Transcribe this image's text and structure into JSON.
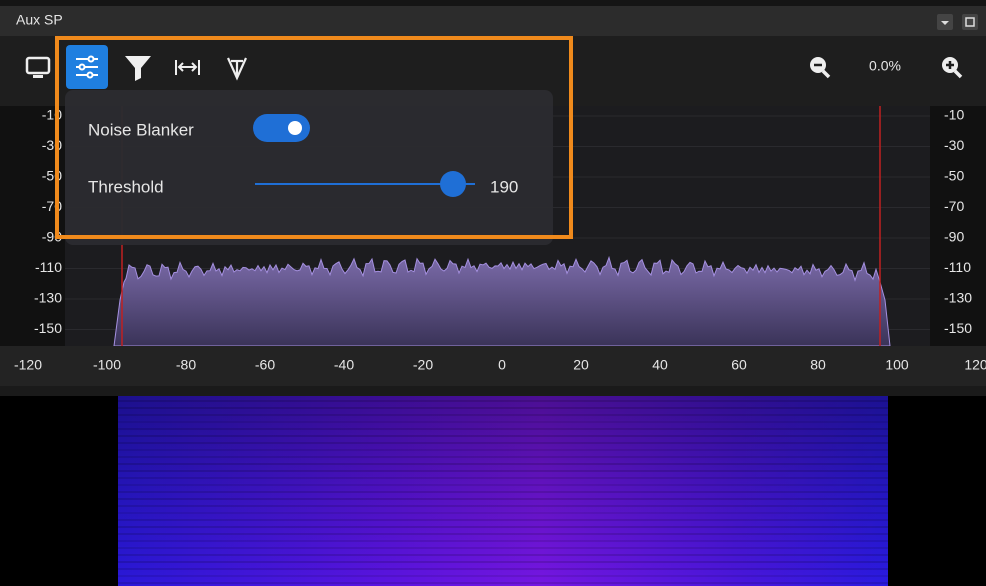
{
  "window": {
    "title": "Aux SP"
  },
  "toolbar": {
    "zoom_level": "0.0%"
  },
  "popup": {
    "noise_blanker": {
      "label": "Noise Blanker",
      "enabled": true
    },
    "threshold": {
      "label": "Threshold",
      "value": 190
    }
  },
  "spectrum": {
    "dbm_ticks": [
      -10,
      -30,
      -50,
      -70,
      -90,
      -110,
      -130,
      -150
    ],
    "freq_ticks": [
      -120,
      -100,
      -80,
      -60,
      -40,
      -20,
      0,
      20,
      40,
      60,
      80,
      100,
      120
    ]
  }
}
